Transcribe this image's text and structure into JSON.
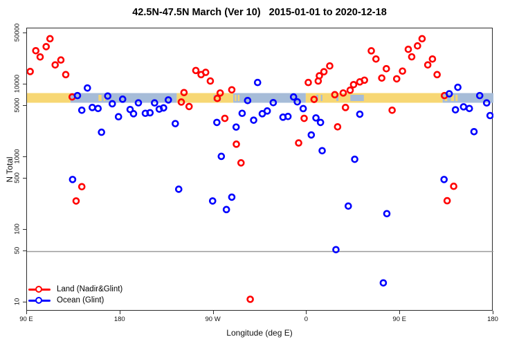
{
  "title": "42.5N-47.5N March (Ver 10)   2015-01-01 to 2020-12-18",
  "colors": {
    "land": "#FF0000",
    "ocean": "#0000FF",
    "strip_land": "#F7D774",
    "strip_ocean": "#A6BCD8",
    "ref_line": "#9a9a9a",
    "frame": "#2b2b2b"
  },
  "legend": [
    {
      "label": "Land (Nadir&Glint)",
      "series": "land",
      "color": "#FF0000"
    },
    {
      "label": "Ocean (Glint)",
      "series": "ocean",
      "color": "#0000FF"
    }
  ],
  "map_strip": {
    "value_center": 6500,
    "segments": [
      {
        "type": "land",
        "from": -270,
        "to": -228
      },
      {
        "type": "ocean",
        "from": -228,
        "to": -125.5
      },
      {
        "type": "land",
        "from": -125.5,
        "to": -71
      },
      {
        "type": "ocean",
        "from": -71,
        "to": -1
      },
      {
        "type": "land",
        "from": -1,
        "to": 131
      },
      {
        "type": "ocean",
        "from": 131,
        "to": 180
      }
    ],
    "patches": [
      {
        "type": "land",
        "from": -201,
        "to": -198
      },
      {
        "type": "land",
        "from": -196,
        "to": -194.5
      },
      {
        "type": "land",
        "from": -69.5,
        "to": -68
      },
      {
        "type": "land",
        "from": -66.5,
        "to": -65
      },
      {
        "type": "ocean",
        "from": -90,
        "to": -88.5
      },
      {
        "type": "ocean",
        "from": -84.5,
        "to": -83
      },
      {
        "type": "ocean",
        "from": 9,
        "to": 11
      },
      {
        "type": "ocean",
        "from": 13.5,
        "to": 15
      },
      {
        "type": "ocean",
        "from": 28.5,
        "to": 30.5
      },
      {
        "type": "ocean",
        "from": 42,
        "to": 55
      },
      {
        "type": "land",
        "from": 133,
        "to": 135.5
      },
      {
        "type": "land",
        "from": 139,
        "to": 142
      },
      {
        "type": "land",
        "from": 143.5,
        "to": 145.5
      }
    ]
  },
  "chart_data": {
    "type": "scatter",
    "title": "42.5N-47.5N March (Ver 10)   2015-01-01 to 2020-12-18",
    "xlabel": "Longitude (deg E)",
    "ylabel": "N Total",
    "xlim": [
      -270,
      180
    ],
    "ylim": [
      10,
      50000
    ],
    "yscale": "log",
    "reference_line_y": 50,
    "x_ticks": [
      {
        "v": -270,
        "label": "90 E"
      },
      {
        "v": -180,
        "label": "180"
      },
      {
        "v": -90,
        "label": "90 W"
      },
      {
        "v": 0,
        "label": "0"
      },
      {
        "v": 90,
        "label": "90 E"
      },
      {
        "v": 180,
        "label": "180"
      }
    ],
    "y_ticks": [
      {
        "v": 50000,
        "label": "50000"
      },
      {
        "v": 10000,
        "label": "10000"
      },
      {
        "v": 5000,
        "label": "5000"
      },
      {
        "v": 1000,
        "label": "1000"
      },
      {
        "v": 500,
        "label": "500"
      },
      {
        "v": 100,
        "label": "100"
      },
      {
        "v": 50,
        "label": "50"
      },
      {
        "v": 10,
        "label": "10"
      }
    ],
    "series": [
      {
        "name": "Land (Nadir&Glint)",
        "color": "#FF0000",
        "marker": "open-circle",
        "points": [
          [
            -266.9,
            15000
          ],
          [
            -261.5,
            29000
          ],
          [
            -257.3,
            23800
          ],
          [
            -251.5,
            33000
          ],
          [
            -247.8,
            42400
          ],
          [
            -242.8,
            18500
          ],
          [
            -237.3,
            21600
          ],
          [
            -232.6,
            13600
          ],
          [
            -226.4,
            6700
          ],
          [
            -222.6,
            248
          ],
          [
            -217.1,
            390
          ],
          [
            -121.1,
            5700
          ],
          [
            -118.5,
            7700
          ],
          [
            -113.6,
            4950
          ],
          [
            -107.1,
            15500
          ],
          [
            -102,
            13600
          ],
          [
            -97.6,
            14600
          ],
          [
            -93.1,
            11100
          ],
          [
            -86.4,
            6400
          ],
          [
            -83.6,
            7600
          ],
          [
            -79.1,
            3400
          ],
          [
            -72.4,
            8400
          ],
          [
            -68,
            1500
          ],
          [
            -63.5,
            830
          ],
          [
            -54.6,
            11
          ],
          [
            -7.9,
            1560
          ],
          [
            -2.6,
            3400
          ],
          [
            1.4,
            10600
          ],
          [
            7,
            6200
          ],
          [
            11,
            11100
          ],
          [
            12.1,
            13100
          ],
          [
            16.5,
            14900
          ],
          [
            22.1,
            17900
          ],
          [
            27,
            7200
          ],
          [
            29.7,
            2600
          ],
          [
            35.1,
            7600
          ],
          [
            37.3,
            4800
          ],
          [
            41.8,
            8300
          ],
          [
            45.1,
            9900
          ],
          [
            51.1,
            10800
          ],
          [
            55.6,
            11400
          ],
          [
            62.2,
            28900
          ],
          [
            66.7,
            22300
          ],
          [
            72.3,
            12200
          ],
          [
            76.7,
            16400
          ],
          [
            82.3,
            4400
          ],
          [
            86.7,
            11900
          ],
          [
            92.3,
            15200
          ],
          [
            97.9,
            30300
          ],
          [
            101.2,
            23900
          ],
          [
            106.8,
            33800
          ],
          [
            111.2,
            42400
          ],
          [
            116.7,
            18500
          ],
          [
            121.2,
            22300
          ],
          [
            125.7,
            13600
          ],
          [
            132.8,
            7000
          ],
          [
            135.4,
            250
          ],
          [
            141.7,
            395
          ]
        ]
      },
      {
        "name": "Ocean (Glint)",
        "color": "#0000FF",
        "marker": "open-circle",
        "points": [
          [
            -226,
            490
          ],
          [
            -221.3,
            7000
          ],
          [
            -217.1,
            4400
          ],
          [
            -211.7,
            8900
          ],
          [
            -207,
            4800
          ],
          [
            -201.4,
            4650
          ],
          [
            -198.1,
            2190
          ],
          [
            -192.1,
            6900
          ],
          [
            -187.7,
            5400
          ],
          [
            -181.7,
            3580
          ],
          [
            -177.7,
            6240
          ],
          [
            -170.5,
            4500
          ],
          [
            -167.2,
            3940
          ],
          [
            -162.5,
            5560
          ],
          [
            -155.8,
            3990
          ],
          [
            -151.3,
            4060
          ],
          [
            -146.9,
            5550
          ],
          [
            -142.4,
            4560
          ],
          [
            -138.2,
            4740
          ],
          [
            -133.6,
            6100
          ],
          [
            -126.9,
            2880
          ],
          [
            -123.6,
            360
          ],
          [
            -90.9,
            248
          ],
          [
            -86.8,
            2990
          ],
          [
            -82.5,
            1020
          ],
          [
            -77.6,
            189
          ],
          [
            -72.4,
            280
          ],
          [
            -68.2,
            2580
          ],
          [
            -62.4,
            3990
          ],
          [
            -57.1,
            5980
          ],
          [
            -51.3,
            3210
          ],
          [
            -47.5,
            10600
          ],
          [
            -43,
            3940
          ],
          [
            -38.2,
            4300
          ],
          [
            -32.4,
            5600
          ],
          [
            -23,
            3530
          ],
          [
            -18.2,
            3610
          ],
          [
            -12.8,
            6700
          ],
          [
            -9.2,
            5740
          ],
          [
            -3.5,
            4630
          ],
          [
            4.3,
            2010
          ],
          [
            8.8,
            3450
          ],
          [
            13.2,
            2990
          ],
          [
            14.8,
            1220
          ],
          [
            28.1,
            53
          ],
          [
            40,
            211
          ],
          [
            46.2,
            930
          ],
          [
            51.1,
            3880
          ],
          [
            73.8,
            18.5
          ],
          [
            77.2,
            166
          ],
          [
            132.4,
            490
          ],
          [
            137.4,
            7400
          ],
          [
            143.4,
            4460
          ],
          [
            145.7,
            9100
          ],
          [
            151.2,
            4900
          ],
          [
            156.8,
            4650
          ],
          [
            161.3,
            2230
          ],
          [
            166.8,
            7000
          ],
          [
            173.5,
            5550
          ],
          [
            176.8,
            3715
          ]
        ]
      }
    ]
  }
}
